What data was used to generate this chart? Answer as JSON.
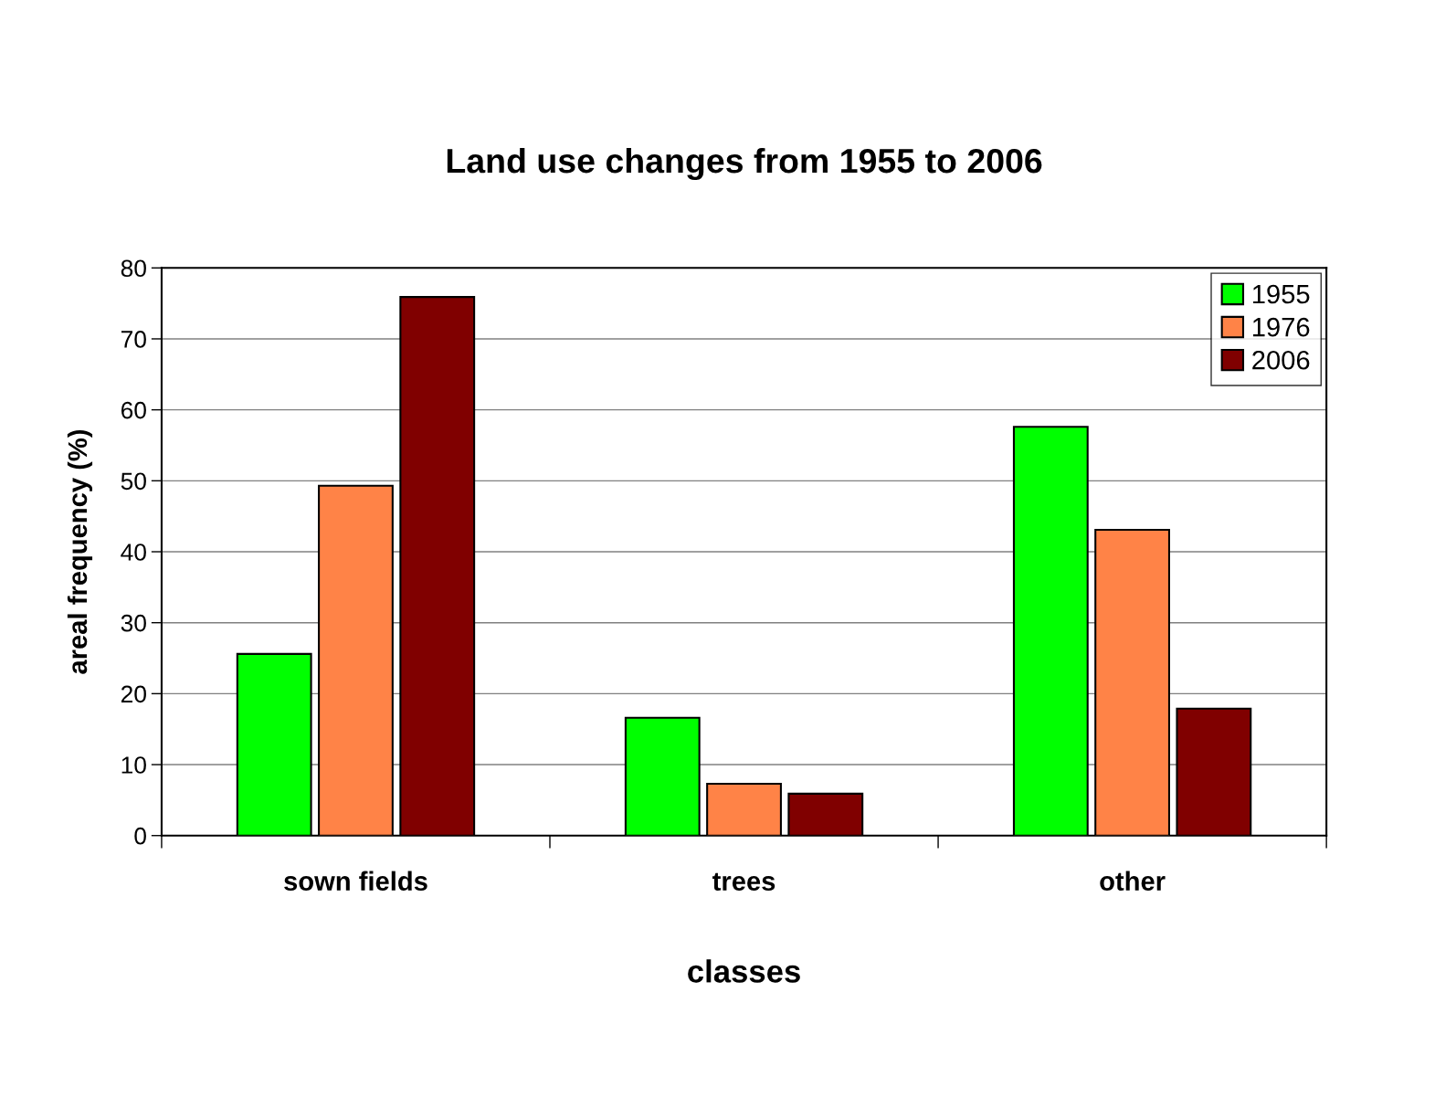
{
  "chart_data": {
    "type": "bar",
    "title": "Land use changes from 1955 to 2006",
    "xlabel": "classes",
    "ylabel": "areal frequency (%)",
    "categories": [
      "sown fields",
      "trees",
      "other"
    ],
    "series": [
      {
        "name": "1955",
        "color": "#00ff00",
        "values": [
          25.6,
          16.6,
          57.6
        ]
      },
      {
        "name": "1976",
        "color": "#ff8347",
        "values": [
          49.3,
          7.3,
          43.1
        ]
      },
      {
        "name": "2006",
        "color": "#800000",
        "values": [
          75.9,
          5.9,
          17.9
        ]
      }
    ],
    "ylim": [
      0,
      80
    ],
    "yticks": [
      0,
      10,
      20,
      30,
      40,
      50,
      60,
      70,
      80
    ],
    "grid": "y",
    "legend": "top right"
  }
}
